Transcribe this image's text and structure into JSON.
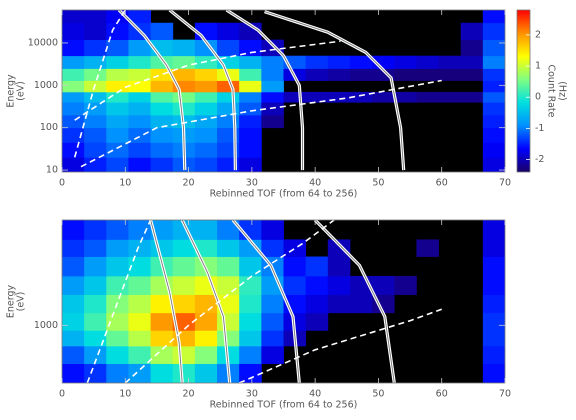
{
  "chart_data": [
    {
      "type": "heatmap",
      "xlabel": "Rebinned TOF (from 64 to 256)",
      "ylabel": [
        "Energy",
        "(eV)"
      ],
      "xlim": [
        0,
        70
      ],
      "xticks": [
        0,
        10,
        20,
        30,
        40,
        50,
        60,
        70
      ],
      "ylim": [
        9,
        60000
      ],
      "yticks": [
        10,
        100,
        1000,
        10000
      ],
      "log_y": true,
      "xbins": [
        0,
        3.5,
        7,
        10.5,
        14,
        17.5,
        21,
        24.5,
        28,
        31.5,
        35,
        38.5,
        42,
        45.5,
        49,
        52.5,
        56,
        59.5,
        63,
        66.5,
        70
      ],
      "ybins": [
        9,
        20,
        45,
        100,
        200,
        400,
        700,
        1300,
        2500,
        5000,
        12000,
        30000,
        60000
      ],
      "z": [
        [
          -1.8,
          -1.5,
          -1.3,
          -1.6,
          -1.4,
          -1.2,
          -1.3,
          -1.5,
          -1.8,
          null,
          null,
          null,
          null,
          null,
          null,
          null,
          null,
          null,
          null,
          -1.8
        ],
        [
          -1.6,
          -1.3,
          -1.1,
          -1.3,
          -1.1,
          -1.0,
          -1.1,
          -1.3,
          -1.6,
          null,
          null,
          null,
          null,
          null,
          null,
          null,
          null,
          null,
          null,
          -1.7
        ],
        [
          -1.4,
          -1.2,
          -0.9,
          -1.1,
          -0.9,
          -0.8,
          -0.9,
          -1.2,
          -1.6,
          null,
          null,
          null,
          null,
          null,
          null,
          null,
          null,
          null,
          null,
          -1.6
        ],
        [
          -1.2,
          -1.0,
          -0.7,
          -0.9,
          -0.6,
          -0.5,
          -0.7,
          -1.0,
          -1.5,
          -2.2,
          null,
          null,
          null,
          null,
          null,
          null,
          null,
          null,
          null,
          -1.5
        ],
        [
          -1.0,
          -0.8,
          -0.4,
          -0.6,
          -0.2,
          0.0,
          -0.3,
          -0.7,
          -1.2,
          -2.0,
          null,
          null,
          null,
          null,
          null,
          null,
          null,
          null,
          null,
          -1.4
        ],
        [
          -0.8,
          -0.5,
          0.0,
          -0.3,
          0.3,
          0.5,
          0.2,
          -0.3,
          -1.0,
          -1.6,
          -2.0,
          -2.0,
          -2.0,
          -2.0,
          -2.1,
          -2.1,
          -2.2,
          -2.2,
          -2.2,
          -1.2
        ],
        [
          0.6,
          1.0,
          1.4,
          1.3,
          1.8,
          2.1,
          2.0,
          2.3,
          1.2,
          -0.8,
          null,
          null,
          null,
          null,
          null,
          null,
          null,
          null,
          null,
          -1.5
        ],
        [
          0.2,
          0.5,
          0.9,
          1.0,
          1.5,
          1.8,
          1.6,
          1.2,
          0.2,
          -1.0,
          -1.8,
          -2.0,
          -2.1,
          -2.2,
          -2.2,
          -2.3,
          -2.3,
          -2.3,
          -2.3,
          -1.4
        ],
        [
          -0.8,
          -0.6,
          -0.3,
          0.0,
          0.3,
          0.4,
          0.1,
          -0.3,
          -0.6,
          -1.0,
          -1.2,
          -1.4,
          -1.5,
          -1.6,
          -1.7,
          -1.8,
          -1.9,
          -2.0,
          -2.0,
          -1.0
        ],
        [
          -1.6,
          -1.4,
          -1.2,
          -0.8,
          -0.5,
          -0.6,
          -0.9,
          -1.3,
          -1.6,
          -2.0,
          null,
          null,
          null,
          null,
          null,
          null,
          null,
          null,
          -2.2,
          -1.2
        ],
        [
          -1.8,
          -1.9,
          -1.6,
          -1.4,
          -1.2,
          null,
          -1.6,
          -1.8,
          -2.0,
          null,
          null,
          null,
          null,
          null,
          null,
          null,
          null,
          null,
          -2.0,
          -1.4
        ],
        [
          -1.9,
          -1.9,
          -1.7,
          -1.5,
          null,
          null,
          null,
          null,
          null,
          null,
          null,
          null,
          null,
          null,
          null,
          null,
          null,
          null,
          null,
          -1.6
        ]
      ],
      "colormap": [
        "#1a0066",
        "#0000ff",
        "#0090ff",
        "#00e0e0",
        "#80ff80",
        "#ffff00",
        "#ff9000",
        "#ff0000"
      ],
      "zlim": [
        -2.4,
        2.8
      ],
      "colorbar": {
        "label": [
          "Count Rate",
          "(Hz)"
        ],
        "ticks": [
          -2,
          -1,
          0,
          1,
          2
        ]
      },
      "curves": [
        {
          "style": "solid",
          "x": [
            9,
            13,
            16.5,
            18.5,
            19.2,
            19.4
          ],
          "y": [
            60000,
            15000,
            3000,
            800,
            100,
            10
          ]
        },
        {
          "style": "solid",
          "x": [
            17,
            22,
            25.5,
            27,
            27.3,
            27.4
          ],
          "y": [
            60000,
            15000,
            3000,
            800,
            100,
            10
          ]
        },
        {
          "style": "solid",
          "x": [
            26,
            31,
            35,
            37.5,
            38,
            38
          ],
          "y": [
            60000,
            20000,
            5000,
            1000,
            100,
            10
          ]
        },
        {
          "style": "solid",
          "x": [
            32,
            42,
            48,
            52,
            53.5,
            54
          ],
          "y": [
            55000,
            18000,
            6000,
            1500,
            100,
            10
          ]
        },
        {
          "style": "dashed",
          "x": [
            2,
            5,
            8,
            10
          ],
          "y": [
            20,
            800,
            20000,
            60000
          ]
        },
        {
          "style": "dashed",
          "x": [
            2,
            10,
            20,
            30,
            44
          ],
          "y": [
            150,
            900,
            3000,
            6000,
            11000
          ]
        },
        {
          "style": "dashed",
          "x": [
            3,
            15,
            30,
            45,
            60
          ],
          "y": [
            12,
            100,
            250,
            500,
            1300
          ]
        }
      ]
    },
    {
      "type": "heatmap",
      "xlabel": "Rebinned TOF (from 64 to 256)",
      "ylabel": [
        "Energy",
        "(eV)"
      ],
      "xlim": [
        0,
        70
      ],
      "xticks": [
        0,
        10,
        20,
        30,
        40,
        50,
        60,
        70
      ],
      "ylim": [
        300,
        9000
      ],
      "yticks": [
        1000
      ],
      "log_y": true,
      "xbins": [
        0,
        3.5,
        7,
        10.5,
        14,
        17.5,
        21,
        24.5,
        28,
        31.5,
        35,
        38.5,
        42,
        45.5,
        49,
        52.5,
        56,
        59.5,
        63,
        66.5,
        70
      ],
      "ybins": [
        300,
        450,
        650,
        900,
        1300,
        1900,
        2800,
        4200,
        6000,
        9000
      ],
      "z": [
        [
          -1.6,
          -1.4,
          -1.0,
          -0.8,
          -0.2,
          0.0,
          -0.4,
          -1.0,
          -1.6,
          null,
          null,
          null,
          null,
          null,
          null,
          null,
          null,
          null,
          null,
          -1.6
        ],
        [
          -1.2,
          -0.8,
          -0.2,
          0.2,
          0.8,
          1.0,
          0.6,
          -0.2,
          -1.0,
          -1.8,
          null,
          null,
          null,
          null,
          null,
          null,
          null,
          null,
          null,
          -1.5
        ],
        [
          -0.6,
          -0.2,
          0.4,
          0.9,
          1.6,
          1.8,
          1.4,
          0.6,
          -0.4,
          -1.4,
          -2.0,
          null,
          null,
          null,
          null,
          null,
          null,
          null,
          null,
          -1.4
        ],
        [
          -0.3,
          0.2,
          0.8,
          1.2,
          2.0,
          2.3,
          1.9,
          1.0,
          -0.2,
          -1.2,
          -1.8,
          -2.0,
          null,
          null,
          null,
          null,
          null,
          null,
          null,
          -1.4
        ],
        [
          -0.4,
          0.0,
          0.6,
          0.9,
          1.4,
          1.6,
          1.8,
          1.2,
          0.0,
          -1.0,
          -1.6,
          -1.8,
          -2.0,
          -2.0,
          -2.2,
          null,
          null,
          null,
          null,
          -1.5
        ],
        [
          -0.8,
          -0.4,
          0.2,
          0.4,
          0.8,
          1.0,
          1.2,
          1.0,
          0.1,
          -0.8,
          -1.4,
          -1.6,
          -1.8,
          -2.0,
          -2.0,
          -2.2,
          null,
          null,
          null,
          -1.6
        ],
        [
          -1.2,
          -0.8,
          -0.4,
          -0.2,
          0.2,
          0.4,
          0.6,
          0.4,
          -0.4,
          -1.0,
          -1.6,
          -1.4,
          -2.0,
          null,
          null,
          null,
          null,
          null,
          null,
          -1.6
        ],
        [
          -1.4,
          -1.2,
          -0.8,
          -0.6,
          -0.4,
          -0.2,
          0.0,
          -0.4,
          -0.8,
          -1.4,
          -1.8,
          null,
          -2.0,
          null,
          null,
          null,
          -2.2,
          null,
          null,
          -1.8
        ],
        [
          -1.6,
          -1.4,
          -1.2,
          -1.0,
          -0.8,
          -0.6,
          -0.6,
          -1.0,
          -1.4,
          -1.8,
          null,
          null,
          null,
          null,
          null,
          null,
          null,
          null,
          null,
          -1.8
        ]
      ],
      "curves": [
        {
          "style": "solid",
          "x": [
            14,
            17,
            18.5,
            19
          ],
          "y": [
            9000,
            2000,
            700,
            300
          ]
        },
        {
          "style": "solid",
          "x": [
            19,
            23,
            25.5,
            26.5
          ],
          "y": [
            9000,
            3000,
            1200,
            300
          ]
        },
        {
          "style": "solid",
          "x": [
            27,
            33,
            36.5,
            37.5
          ],
          "y": [
            9000,
            3500,
            1200,
            300
          ]
        },
        {
          "style": "solid",
          "x": [
            40,
            47,
            51,
            52.5
          ],
          "y": [
            9000,
            3500,
            1200,
            300
          ]
        },
        {
          "style": "dashed",
          "x": [
            4,
            12,
            14
          ],
          "y": [
            300,
            5000,
            9000
          ]
        },
        {
          "style": "dashed",
          "x": [
            10,
            20,
            30,
            38,
            43
          ],
          "y": [
            300,
            1000,
            2800,
            5500,
            9000
          ]
        },
        {
          "style": "dashed",
          "x": [
            28,
            40,
            55,
            60
          ],
          "y": [
            300,
            600,
            1100,
            1400
          ]
        }
      ]
    }
  ]
}
